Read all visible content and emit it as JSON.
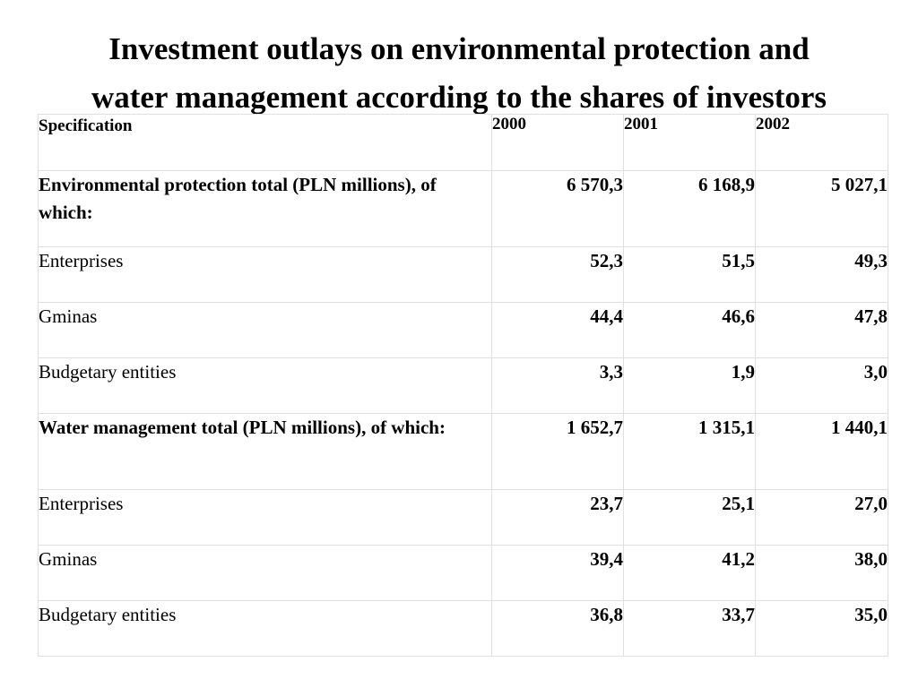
{
  "title": {
    "line1": "Investment outlays on environmental protection and",
    "line2": "water management according to the shares of investors"
  },
  "table": {
    "header": {
      "specification": "Specification",
      "years": [
        "2000",
        "2001",
        "2002"
      ]
    },
    "rows": [
      {
        "label": "Environmental protection total (PLN millions), of which:",
        "bold": true,
        "values": [
          "6 570,3",
          "6 168,9",
          "5 027,1"
        ]
      },
      {
        "label": "Enterprises",
        "bold": false,
        "values": [
          "52,3",
          "51,5",
          "49,3"
        ]
      },
      {
        "label": "Gminas",
        "bold": false,
        "values": [
          "44,4",
          "46,6",
          "47,8"
        ]
      },
      {
        "label": "Budgetary entities",
        "bold": false,
        "values": [
          "3,3",
          "1,9",
          "3,0"
        ]
      },
      {
        "label": "Water management total (PLN millions), of which:",
        "bold": true,
        "values": [
          "1 652,7",
          "1 315,1",
          "1 440,1"
        ]
      },
      {
        "label": "Enterprises",
        "bold": false,
        "values": [
          "23,7",
          "25,1",
          "27,0"
        ]
      },
      {
        "label": "Gminas",
        "bold": false,
        "values": [
          "39,4",
          "41,2",
          "38,0"
        ]
      },
      {
        "label": "Budgetary entities",
        "bold": false,
        "values": [
          "36,8",
          "33,7",
          "35,0"
        ]
      }
    ]
  }
}
